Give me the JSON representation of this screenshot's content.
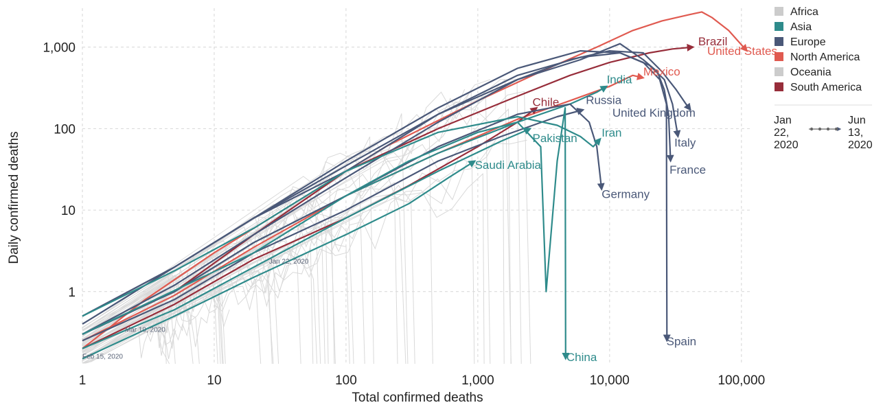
{
  "chart_data": {
    "type": "line",
    "xlabel": "Total confirmed deaths",
    "ylabel": "Daily confirmed deaths",
    "xscale": "log",
    "yscale": "log",
    "xlim": [
      1,
      120000
    ],
    "ylim": [
      0.13,
      3000
    ],
    "x_ticks": [
      {
        "value": 1,
        "label": "1"
      },
      {
        "value": 10,
        "label": "10"
      },
      {
        "value": 100,
        "label": "100"
      },
      {
        "value": 1000,
        "label": "1,000"
      },
      {
        "value": 10000,
        "label": "10,000"
      },
      {
        "value": 100000,
        "label": "100,000"
      }
    ],
    "y_ticks": [
      {
        "value": 1,
        "label": "1"
      },
      {
        "value": 10,
        "label": "10"
      },
      {
        "value": 100,
        "label": "100"
      },
      {
        "value": 1000,
        "label": "1,000"
      }
    ],
    "grid": true,
    "legend_position": "top-right",
    "legend": [
      {
        "name": "Africa",
        "color": "#cccccc"
      },
      {
        "name": "Asia",
        "color": "#2e8b8b"
      },
      {
        "name": "Europe",
        "color": "#4a5878"
      },
      {
        "name": "North America",
        "color": "#e05a50"
      },
      {
        "name": "Oceania",
        "color": "#cccccc"
      },
      {
        "name": "South America",
        "color": "#972d3a"
      }
    ],
    "time_range": {
      "start": "Jan\n22,\n2020",
      "end": "Jun\n13,\n2020"
    },
    "date_annotations": [
      {
        "text": "Jan 22, 2020",
        "x": 26,
        "y": 2.2
      },
      {
        "text": "Mar 10, 2020",
        "x": 2.1,
        "y": 0.32
      },
      {
        "text": "Feb 15, 2020",
        "x": 1.0,
        "y": 0.15
      }
    ],
    "series": [
      {
        "name": "United States",
        "region": "North America",
        "label": "United States",
        "label_x": 55000,
        "label_y": 800,
        "points": [
          [
            1,
            0.2
          ],
          [
            3,
            0.8
          ],
          [
            10,
            3
          ],
          [
            50,
            15
          ],
          [
            200,
            60
          ],
          [
            1000,
            220
          ],
          [
            3000,
            500
          ],
          [
            8000,
            1000
          ],
          [
            15000,
            1600
          ],
          [
            25000,
            2100
          ],
          [
            40000,
            2500
          ],
          [
            50000,
            2700
          ],
          [
            60000,
            2300
          ],
          [
            80000,
            1600
          ],
          [
            110000,
            900
          ]
        ]
      },
      {
        "name": "Brazil",
        "region": "South America",
        "label": "Brazil",
        "label_x": 47000,
        "label_y": 1050,
        "points": [
          [
            1,
            0.3
          ],
          [
            5,
            1
          ],
          [
            20,
            5
          ],
          [
            100,
            30
          ],
          [
            500,
            100
          ],
          [
            2000,
            250
          ],
          [
            5000,
            450
          ],
          [
            10000,
            650
          ],
          [
            20000,
            850
          ],
          [
            30000,
            950
          ],
          [
            43000,
            1000
          ]
        ]
      },
      {
        "name": "Mexico",
        "region": "North America",
        "label": "Mexico",
        "label_x": 18000,
        "label_y": 450,
        "points": [
          [
            1,
            0.25
          ],
          [
            5,
            0.9
          ],
          [
            20,
            3.5
          ],
          [
            100,
            15
          ],
          [
            500,
            50
          ],
          [
            2000,
            130
          ],
          [
            5000,
            220
          ],
          [
            10000,
            330
          ],
          [
            15000,
            450
          ],
          [
            18000,
            420
          ]
        ]
      },
      {
        "name": "Chile",
        "region": "South America",
        "label": "Chile",
        "label_x": 2600,
        "label_y": 190,
        "points": [
          [
            1,
            0.2
          ],
          [
            5,
            0.7
          ],
          [
            20,
            2.5
          ],
          [
            100,
            8
          ],
          [
            300,
            20
          ],
          [
            1000,
            60
          ],
          [
            2000,
            120
          ],
          [
            2800,
            180
          ]
        ]
      },
      {
        "name": "India",
        "region": "Asia",
        "label": "India",
        "label_x": 9500,
        "label_y": 360,
        "points": [
          [
            1,
            0.3
          ],
          [
            5,
            1
          ],
          [
            20,
            4
          ],
          [
            100,
            15
          ],
          [
            500,
            50
          ],
          [
            2000,
            120
          ],
          [
            5000,
            200
          ],
          [
            8000,
            280
          ],
          [
            9500,
            330
          ]
        ]
      },
      {
        "name": "Russia",
        "region": "Europe",
        "label": "Russia",
        "label_x": 6600,
        "label_y": 200,
        "points": [
          [
            1,
            0.25
          ],
          [
            5,
            0.8
          ],
          [
            20,
            3
          ],
          [
            100,
            10
          ],
          [
            500,
            40
          ],
          [
            1500,
            80
          ],
          [
            4000,
            140
          ],
          [
            6300,
            170
          ]
        ]
      },
      {
        "name": "United Kingdom",
        "region": "Europe",
        "label": "United Kingdom",
        "label_x": 10500,
        "label_y": 140,
        "points": [
          [
            1,
            0.3
          ],
          [
            5,
            1.2
          ],
          [
            20,
            5
          ],
          [
            100,
            25
          ],
          [
            500,
            120
          ],
          [
            2000,
            400
          ],
          [
            5000,
            700
          ],
          [
            10000,
            900
          ],
          [
            18000,
            850
          ],
          [
            25000,
            500
          ],
          [
            32000,
            300
          ],
          [
            38000,
            200
          ],
          [
            41000,
            170
          ]
        ]
      },
      {
        "name": "Italy",
        "region": "Europe",
        "label": "Italy",
        "label_x": 31000,
        "label_y": 60,
        "points": [
          [
            1,
            0.4
          ],
          [
            5,
            2
          ],
          [
            20,
            8
          ],
          [
            100,
            35
          ],
          [
            500,
            150
          ],
          [
            2000,
            450
          ],
          [
            6000,
            750
          ],
          [
            12000,
            850
          ],
          [
            20000,
            600
          ],
          [
            26000,
            400
          ],
          [
            30000,
            200
          ],
          [
            33000,
            80
          ]
        ]
      },
      {
        "name": "France",
        "region": "Europe",
        "label": "France",
        "label_x": 28500,
        "label_y": 28,
        "points": [
          [
            1,
            0.5
          ],
          [
            5,
            2
          ],
          [
            20,
            8
          ],
          [
            100,
            30
          ],
          [
            500,
            150
          ],
          [
            2000,
            400
          ],
          [
            6000,
            700
          ],
          [
            12000,
            1100
          ],
          [
            18000,
            700
          ],
          [
            23000,
            500
          ],
          [
            26000,
            300
          ],
          [
            28000,
            150
          ],
          [
            29000,
            40
          ]
        ]
      },
      {
        "name": "Spain",
        "region": "Europe",
        "label": "Spain",
        "label_x": 27000,
        "label_y": 0.22,
        "points": [
          [
            1,
            0.5
          ],
          [
            5,
            2
          ],
          [
            20,
            8
          ],
          [
            100,
            40
          ],
          [
            500,
            180
          ],
          [
            2000,
            550
          ],
          [
            6000,
            900
          ],
          [
            12000,
            850
          ],
          [
            18000,
            650
          ],
          [
            24000,
            400
          ],
          [
            27000,
            200
          ],
          [
            27200,
            0.25
          ]
        ]
      },
      {
        "name": "Germany",
        "region": "Europe",
        "label": "Germany",
        "label_x": 8700,
        "label_y": 14,
        "points": [
          [
            1,
            0.3
          ],
          [
            5,
            1
          ],
          [
            20,
            4
          ],
          [
            100,
            15
          ],
          [
            500,
            60
          ],
          [
            2000,
            150
          ],
          [
            5000,
            200
          ],
          [
            7000,
            120
          ],
          [
            8000,
            60
          ],
          [
            8700,
            18
          ]
        ]
      },
      {
        "name": "Iran",
        "region": "Asia",
        "label": "Iran",
        "label_x": 8700,
        "label_y": 80,
        "points": [
          [
            1,
            0.5
          ],
          [
            5,
            1.8
          ],
          [
            20,
            6
          ],
          [
            100,
            30
          ],
          [
            500,
            90
          ],
          [
            2000,
            140
          ],
          [
            4000,
            110
          ],
          [
            6000,
            80
          ],
          [
            7500,
            60
          ],
          [
            8500,
            75
          ]
        ]
      },
      {
        "name": "Pakistan",
        "region": "Asia",
        "label": "Pakistan",
        "label_x": 2600,
        "label_y": 68,
        "points": [
          [
            1,
            0.2
          ],
          [
            5,
            0.6
          ],
          [
            20,
            2
          ],
          [
            100,
            8
          ],
          [
            500,
            30
          ],
          [
            1500,
            70
          ],
          [
            2500,
            100
          ]
        ]
      },
      {
        "name": "Saudi Arabia",
        "region": "Asia",
        "label": "Saudi Arabia",
        "label_x": 950,
        "label_y": 32,
        "points": [
          [
            1,
            0.15
          ],
          [
            5,
            0.5
          ],
          [
            20,
            1.5
          ],
          [
            100,
            5
          ],
          [
            300,
            12
          ],
          [
            600,
            25
          ],
          [
            950,
            40
          ]
        ]
      },
      {
        "name": "China",
        "region": "Asia",
        "label": "China",
        "label_x": 4700,
        "label_y": 0.14,
        "points": [
          [
            1,
            0.3
          ],
          [
            20,
            3
          ],
          [
            100,
            15
          ],
          [
            300,
            40
          ],
          [
            1000,
            90
          ],
          [
            2000,
            120
          ],
          [
            3000,
            60
          ],
          [
            3300,
            1
          ],
          [
            4000,
            40
          ],
          [
            4600,
            180
          ],
          [
            4640,
            0.15
          ]
        ]
      }
    ]
  }
}
